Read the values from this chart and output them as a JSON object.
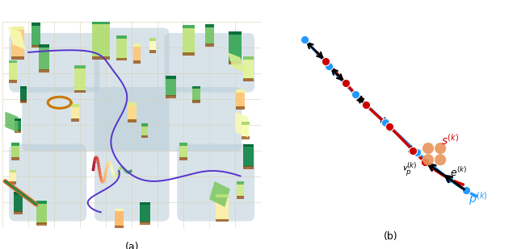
{
  "fig_width": 6.4,
  "fig_height": 3.09,
  "dpi": 100,
  "label_a": "(a)",
  "label_b": "(b)",
  "bg_color": "#ffffff",
  "panel_a": {
    "bg_light": "#faf5e4",
    "corridor_color": "#b8ccd8",
    "grid_color": "#d8d0b8",
    "traj_color": "#4422aa",
    "ring_color": "#cc7700"
  },
  "panel_b": {
    "blue_ctrl_x": [
      0.5,
      1.8,
      3.2,
      4.8,
      6.5,
      8.2,
      9.5
    ],
    "blue_ctrl_y": [
      9.2,
      7.8,
      6.3,
      4.8,
      3.2,
      1.8,
      1.0
    ],
    "red_ctrl_x": [
      1.2,
      2.5,
      3.8,
      5.3,
      6.8,
      8.8
    ],
    "red_ctrl_y": [
      8.5,
      7.1,
      5.7,
      4.3,
      2.8,
      1.6
    ],
    "n_blue_pts": 6,
    "n_red_pts": 5,
    "blue_t_pts": [
      0.0,
      0.17,
      0.34,
      0.51,
      0.68,
      0.85
    ],
    "red_t_pts": [
      0.04,
      0.21,
      0.38,
      0.55,
      0.72
    ],
    "t_pk": 0.9,
    "t_sk": 0.78,
    "t_vp": 0.8,
    "blue_color": "#2299ff",
    "red_color": "#cc0000",
    "drone_color": "#e8955a",
    "arrow_color": "#111111",
    "pt_size": 55,
    "lw": 2.5
  }
}
